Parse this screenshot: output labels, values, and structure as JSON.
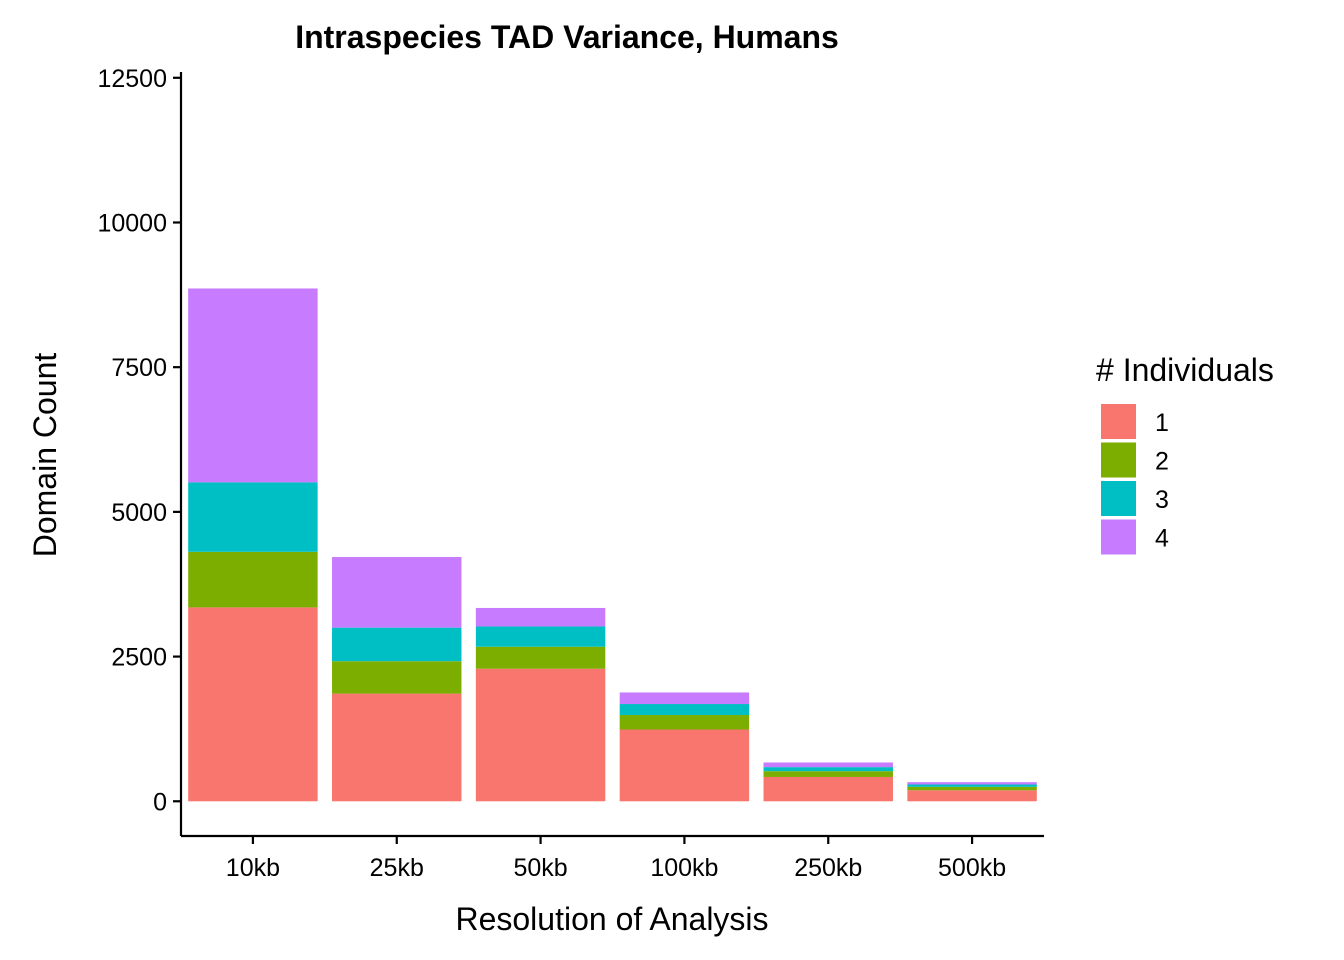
{
  "chart_data": {
    "type": "bar",
    "stacked": true,
    "title": "Intraspecies TAD Variance, Humans",
    "xlabel": "Resolution of Analysis",
    "ylabel": "Domain Count",
    "ylim": [
      -600,
      12600
    ],
    "yticks": [
      0,
      2500,
      5000,
      7500,
      10000,
      12500
    ],
    "ytick_labels": [
      "0",
      "2500",
      "5000",
      "7500",
      "10000",
      "12500"
    ],
    "categories": [
      "10kb",
      "25kb",
      "50kb",
      "100kb",
      "250kb",
      "500kb"
    ],
    "legend_title": "# Individuals",
    "legend_position": "right",
    "grid": false,
    "series": [
      {
        "name": "1",
        "color": "#F8766D",
        "values": [
          3350,
          1860,
          2290,
          1240,
          420,
          190
        ]
      },
      {
        "name": "2",
        "color": "#7CAE00",
        "values": [
          960,
          560,
          380,
          250,
          100,
          60
        ]
      },
      {
        "name": "3",
        "color": "#00BFC4",
        "values": [
          1200,
          580,
          350,
          190,
          70,
          40
        ]
      },
      {
        "name": "4",
        "color": "#C77CFF",
        "values": [
          3350,
          1220,
          320,
          200,
          80,
          40
        ]
      }
    ]
  }
}
